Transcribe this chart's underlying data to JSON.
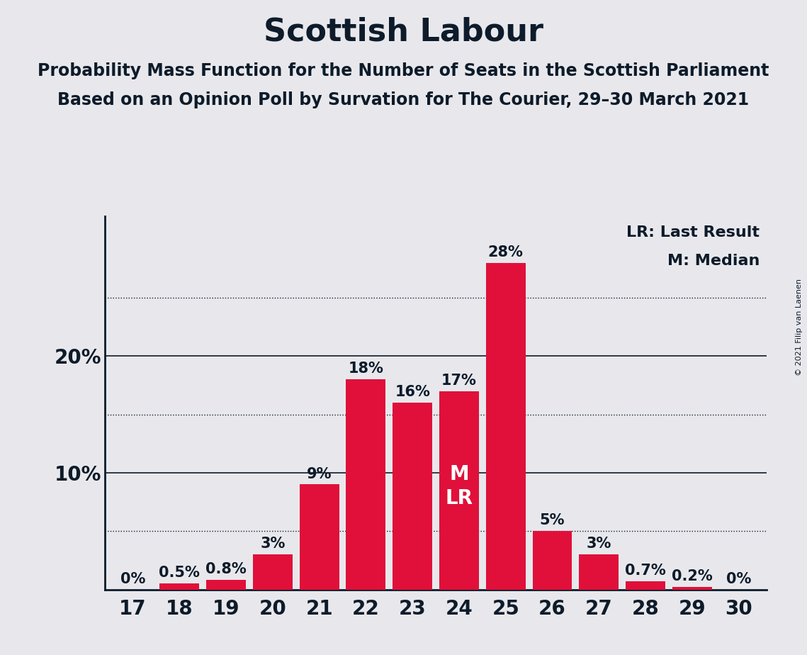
{
  "title": "Scottish Labour",
  "subtitle1": "Probability Mass Function for the Number of Seats in the Scottish Parliament",
  "subtitle2": "Based on an Opinion Poll by Survation for The Courier, 29–30 March 2021",
  "copyright": "© 2021 Filip van Laenen",
  "seats": [
    17,
    18,
    19,
    20,
    21,
    22,
    23,
    24,
    25,
    26,
    27,
    28,
    29,
    30
  ],
  "values": [
    0.0,
    0.5,
    0.8,
    3.0,
    9.0,
    18.0,
    16.0,
    17.0,
    28.0,
    5.0,
    3.0,
    0.7,
    0.2,
    0.0
  ],
  "labels": [
    "0%",
    "0.5%",
    "0.8%",
    "3%",
    "9%",
    "18%",
    "16%",
    "17%",
    "28%",
    "5%",
    "3%",
    "0.7%",
    "0.2%",
    "0%"
  ],
  "bar_color": "#e0103a",
  "background_color": "#e8e8ec",
  "text_color": "#0d1b2a",
  "median_seat": 24,
  "last_result_seat": 24,
  "solid_gridlines": [
    10,
    20
  ],
  "dotted_gridlines": [
    5,
    15,
    25
  ],
  "legend_lr": "LR: Last Result",
  "legend_m": "M: Median",
  "ylim": [
    0,
    32
  ],
  "bar_width": 0.85,
  "title_fontsize": 32,
  "subtitle_fontsize": 17,
  "tick_fontsize": 20,
  "label_fontsize": 15,
  "mlr_fontsize": 20,
  "legend_fontsize": 16
}
